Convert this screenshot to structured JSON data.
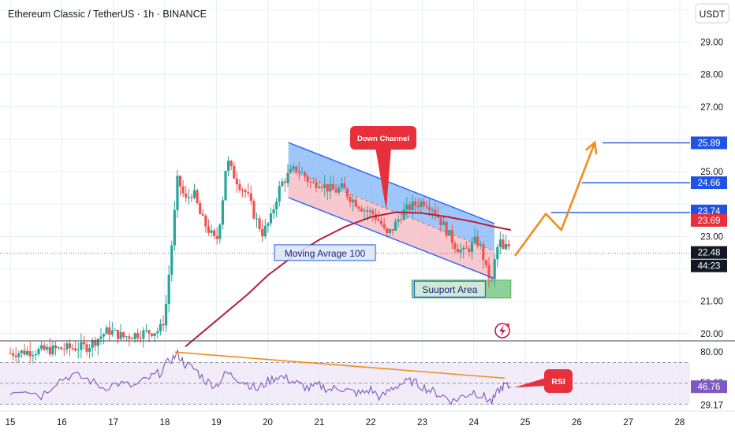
{
  "header": {
    "symbol_title": "Ethereum Classic / TetherUS · 1h · BINANCE",
    "currency": "USDT"
  },
  "colors": {
    "up_candle": "#26a69a",
    "down_candle": "#ef5350",
    "ma_line": "#b71c3a",
    "channel_line": "#2962ff",
    "channel_fill_upper": "#7fb3f5",
    "channel_fill_lower": "#f4b6bd",
    "support_fill": "#7cc98a",
    "forecast": "#f28c1d",
    "level_line": "#1e53e5",
    "rsi_line": "#7e57c2",
    "rsi_band": "#ede7f6",
    "callout_red": "#e8303c",
    "grid": "#e6eef7"
  },
  "chart_data": {
    "type": "candlestick",
    "x_axis": {
      "range": [
        14.8,
        28.2
      ],
      "tick_labels": [
        "15",
        "16",
        "17",
        "18",
        "19",
        "20",
        "21",
        "22",
        "23",
        "24",
        "25",
        "26",
        "27",
        "28"
      ],
      "tick_values": [
        15,
        16,
        17,
        18,
        19,
        20,
        21,
        22,
        23,
        24,
        25,
        26,
        27,
        28
      ]
    },
    "y_axis": {
      "range": [
        19.8,
        30.3
      ],
      "tick_labels": [
        "29.00",
        "28.00",
        "27.00",
        "25.00",
        "23.00",
        "21.00",
        "20.00"
      ],
      "tick_values": [
        29,
        28,
        27,
        25,
        23,
        21,
        20
      ]
    },
    "price_labels": [
      {
        "text": "25.89",
        "value": 25.89,
        "style": "blue"
      },
      {
        "text": "24.66",
        "value": 24.66,
        "style": "blue"
      },
      {
        "text": "23.74",
        "value": 23.74,
        "style": "blue"
      },
      {
        "text": "23.69",
        "value": 23.69,
        "style": "red"
      },
      {
        "text": "22.48",
        "value": 22.48,
        "style": "dark"
      },
      {
        "text": "44:23",
        "value": 22.2,
        "style": "dark"
      }
    ],
    "current_price": 22.48,
    "price_path": [
      [
        15.0,
        19.4
      ],
      [
        16.5,
        19.6
      ],
      [
        16.9,
        20.1
      ],
      [
        17.2,
        19.9
      ],
      [
        17.5,
        20.0
      ],
      [
        17.9,
        20.1
      ],
      [
        18.0,
        20.5
      ],
      [
        18.15,
        23.0
      ],
      [
        18.25,
        24.8
      ],
      [
        18.4,
        24.1
      ],
      [
        18.55,
        24.4
      ],
      [
        18.7,
        23.6
      ],
      [
        18.85,
        23.2
      ],
      [
        19.0,
        22.8
      ],
      [
        19.1,
        23.8
      ],
      [
        19.2,
        25.4
      ],
      [
        19.3,
        25.0
      ],
      [
        19.45,
        24.6
      ],
      [
        19.6,
        24.3
      ],
      [
        19.75,
        23.6
      ],
      [
        19.9,
        23.1
      ],
      [
        20.05,
        23.5
      ],
      [
        20.15,
        24.1
      ],
      [
        20.25,
        24.6
      ],
      [
        20.4,
        24.9
      ],
      [
        20.55,
        25.1
      ],
      [
        20.7,
        24.9
      ],
      [
        20.85,
        24.6
      ],
      [
        21.0,
        24.7
      ],
      [
        21.15,
        24.5
      ],
      [
        21.3,
        24.4
      ],
      [
        21.45,
        24.5
      ],
      [
        21.6,
        24.2
      ],
      [
        21.75,
        24.0
      ],
      [
        21.9,
        23.8
      ],
      [
        22.05,
        23.7
      ],
      [
        22.2,
        23.4
      ],
      [
        22.3,
        23.0
      ],
      [
        22.45,
        23.3
      ],
      [
        22.6,
        23.7
      ],
      [
        22.75,
        23.9
      ],
      [
        22.9,
        24.0
      ],
      [
        23.05,
        24.1
      ],
      [
        23.2,
        23.9
      ],
      [
        23.35,
        23.5
      ],
      [
        23.5,
        23.1
      ],
      [
        23.65,
        22.7
      ],
      [
        23.8,
        22.5
      ],
      [
        23.95,
        22.7
      ],
      [
        24.05,
        22.9
      ],
      [
        24.15,
        22.6
      ],
      [
        24.25,
        21.9
      ],
      [
        24.35,
        21.6
      ],
      [
        24.42,
        22.4
      ],
      [
        24.5,
        22.9
      ],
      [
        24.58,
        22.5
      ],
      [
        24.66,
        22.8
      ],
      [
        24.72,
        22.5
      ]
    ],
    "moving_average_100": [
      [
        18.4,
        19.6
      ],
      [
        19.0,
        20.4
      ],
      [
        19.6,
        21.2
      ],
      [
        20.0,
        21.8
      ],
      [
        20.5,
        22.4
      ],
      [
        21.0,
        22.9
      ],
      [
        21.5,
        23.3
      ],
      [
        22.0,
        23.6
      ],
      [
        22.5,
        23.75
      ],
      [
        23.0,
        23.72
      ],
      [
        23.5,
        23.6
      ],
      [
        24.0,
        23.45
      ],
      [
        24.4,
        23.3
      ],
      [
        24.72,
        23.2
      ]
    ],
    "down_channel": {
      "upper": [
        [
          20.4,
          25.9
        ],
        [
          24.4,
          23.4
        ]
      ],
      "lower": [
        [
          20.4,
          24.2
        ],
        [
          24.4,
          21.7
        ]
      ]
    },
    "support_area": {
      "x": [
        22.8,
        24.72
      ],
      "y": [
        21.1,
        21.65
      ]
    },
    "forecast_path": [
      [
        24.8,
        22.4
      ],
      [
        25.4,
        23.7
      ],
      [
        25.7,
        23.2
      ],
      [
        26.35,
        25.9
      ]
    ],
    "levels": [
      {
        "value": 25.89,
        "x_from": 26.5
      },
      {
        "value": 24.66,
        "x_from": 26.1
      },
      {
        "value": 23.74,
        "x_from": 25.5
      }
    ],
    "annotations": [
      {
        "text": "Down Channel",
        "type": "callout",
        "anchor": [
          22.3,
          23.8
        ]
      },
      {
        "text": "Moving Avrage 100",
        "type": "label",
        "value": 22.5
      },
      {
        "text": "Suuport Area",
        "type": "label"
      }
    ],
    "rsi": {
      "label": "RSI",
      "y_range": [
        25,
        90
      ],
      "tick_labels": [
        "80.00",
        "50.62",
        "46.76",
        "29.17"
      ],
      "tick_values": [
        80,
        50.62,
        46.76,
        29.17
      ],
      "band": [
        30,
        70
      ],
      "values": [
        [
          15.0,
          42
        ],
        [
          15.3,
          45
        ],
        [
          15.6,
          38
        ],
        [
          15.9,
          52
        ],
        [
          16.2,
          58
        ],
        [
          16.5,
          54
        ],
        [
          16.8,
          46
        ],
        [
          17.1,
          50
        ],
        [
          17.4,
          47
        ],
        [
          17.7,
          55
        ],
        [
          17.9,
          60
        ],
        [
          18.1,
          72
        ],
        [
          18.25,
          78
        ],
        [
          18.4,
          68
        ],
        [
          18.6,
          63
        ],
        [
          18.8,
          52
        ],
        [
          19.0,
          48
        ],
        [
          19.2,
          60
        ],
        [
          19.4,
          55
        ],
        [
          19.6,
          50
        ],
        [
          19.8,
          44
        ],
        [
          20.0,
          52
        ],
        [
          20.2,
          57
        ],
        [
          20.4,
          54
        ],
        [
          20.6,
          49
        ],
        [
          20.8,
          45
        ],
        [
          21.0,
          48
        ],
        [
          21.2,
          44
        ],
        [
          21.4,
          46
        ],
        [
          21.6,
          42
        ],
        [
          21.8,
          40
        ],
        [
          22.0,
          44
        ],
        [
          22.2,
          36
        ],
        [
          22.4,
          45
        ],
        [
          22.6,
          50
        ],
        [
          22.8,
          52
        ],
        [
          23.0,
          47
        ],
        [
          23.2,
          42
        ],
        [
          23.4,
          38
        ],
        [
          23.6,
          33
        ],
        [
          23.8,
          38
        ],
        [
          24.0,
          42
        ],
        [
          24.2,
          37
        ],
        [
          24.35,
          32
        ],
        [
          24.5,
          44
        ],
        [
          24.6,
          48
        ],
        [
          24.72,
          46
        ]
      ],
      "divergence_line": [
        [
          18.2,
          80
        ],
        [
          24.6,
          55
        ]
      ]
    }
  }
}
